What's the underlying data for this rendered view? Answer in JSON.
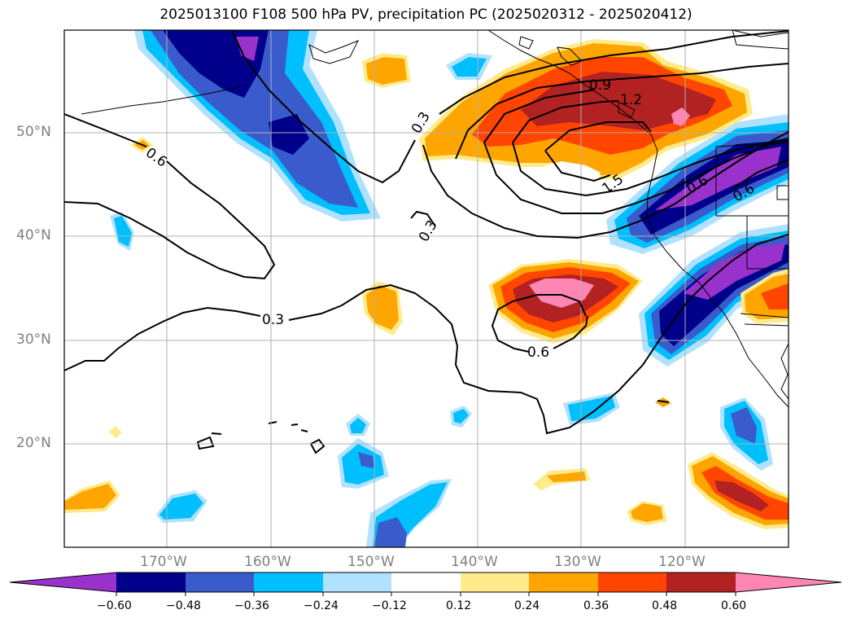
{
  "title": "2025013100 F108 500 hPa PV, precipitation PC (2025020312 - 2025020412)",
  "map": {
    "lon_range": [
      -180,
      -110
    ],
    "lat_range": [
      10,
      60
    ],
    "lat_labels": [
      "50°N",
      "40°N",
      "30°N",
      "20°N"
    ],
    "lon_labels": [
      "170°W",
      "160°W",
      "150°W",
      "140°W",
      "130°W",
      "120°W"
    ],
    "gridlines": true
  },
  "contours": {
    "field": "PV",
    "labels": [
      "0.9",
      "1.2",
      "1.5",
      "0.3",
      "0.6",
      "0.3",
      "0.6",
      "0.3",
      "0.6",
      "0.6"
    ]
  },
  "colorbar": {
    "ticks": [
      "−0.60",
      "−0.48",
      "−0.36",
      "−0.24",
      "−0.12",
      "0.12",
      "0.24",
      "0.36",
      "0.48",
      "0.60"
    ],
    "colors": [
      "#9932cc",
      "#00008b",
      "#3a5bcc",
      "#00bfff",
      "#b0e2ff",
      "#ffffff",
      "#ffeb8c",
      "#ffa500",
      "#ff4500",
      "#b22222",
      "#ff85b4"
    ]
  }
}
